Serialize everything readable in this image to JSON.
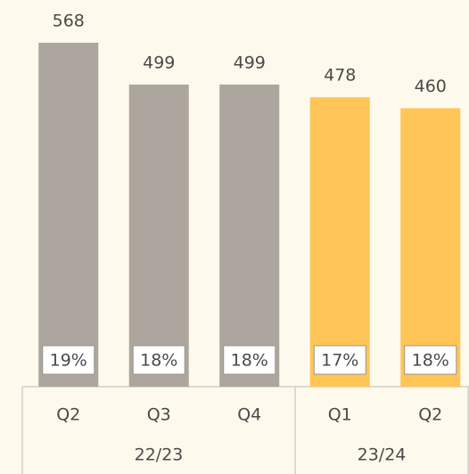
{
  "chart_data": {
    "type": "bar",
    "categories": [
      "Q2",
      "Q3",
      "Q4",
      "Q1",
      "Q2"
    ],
    "values": [
      568,
      499,
      499,
      478,
      460
    ],
    "colors": [
      "#aca69f",
      "#aca69f",
      "#aca69f",
      "#ffc557",
      "#ffc557"
    ],
    "share_labels": [
      "19%",
      "18%",
      "18%",
      "17%",
      "18%"
    ],
    "group_labels": [
      "22/23",
      "23/24"
    ]
  }
}
